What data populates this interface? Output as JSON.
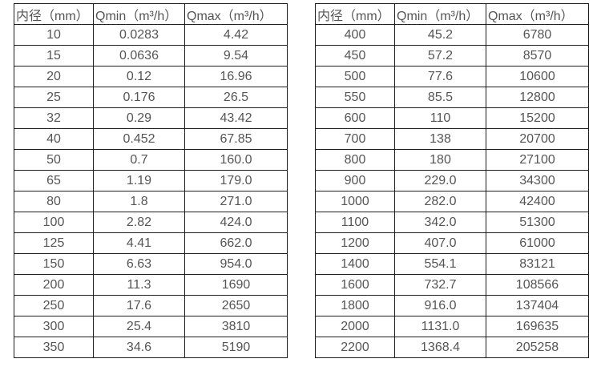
{
  "page": {
    "background": "#ffffff",
    "text_color": "#555555",
    "border_color": "#1f1f1f"
  },
  "tables": [
    {
      "name": "small-diameters",
      "column_keys": [
        "diameter",
        "qmin",
        "qmax"
      ],
      "headers": [
        "内径（mm）",
        "Qmin（m³/h）",
        "Qmax（m³/h）"
      ],
      "rows": [
        [
          "10",
          "0.0283",
          "4.42"
        ],
        [
          "15",
          "0.0636",
          "9.54"
        ],
        [
          "20",
          "0.12",
          "16.96"
        ],
        [
          "25",
          "0.176",
          "26.5"
        ],
        [
          "32",
          "0.29",
          "43.42"
        ],
        [
          "40",
          "0.452",
          "67.85"
        ],
        [
          "50",
          "0.7",
          "160.0"
        ],
        [
          "65",
          "1.19",
          "179.0"
        ],
        [
          "80",
          "1.8",
          "271.0"
        ],
        [
          "100",
          "2.82",
          "424.0"
        ],
        [
          "125",
          "4.41",
          "662.0"
        ],
        [
          "150",
          "6.63",
          "954.0"
        ],
        [
          "200",
          "11.3",
          "1690"
        ],
        [
          "250",
          "17.6",
          "2650"
        ],
        [
          "300",
          "25.4",
          "3810"
        ],
        [
          "350",
          "34.6",
          "5190"
        ]
      ]
    },
    {
      "name": "large-diameters",
      "column_keys": [
        "diameter",
        "qmin",
        "qmax"
      ],
      "headers": [
        "内径（mm）",
        "Qmin（m³/h）",
        "Qmax（m³/h）"
      ],
      "rows": [
        [
          "400",
          "45.2",
          "6780"
        ],
        [
          "450",
          "57.2",
          "8570"
        ],
        [
          "500",
          "77.6",
          "10600"
        ],
        [
          "550",
          "85.5",
          "12800"
        ],
        [
          "600",
          "110",
          "15200"
        ],
        [
          "700",
          "138",
          "20700"
        ],
        [
          "800",
          "180",
          "27100"
        ],
        [
          "900",
          "229.0",
          "34300"
        ],
        [
          "1000",
          "282.0",
          "42400"
        ],
        [
          "1100",
          "342.0",
          "51300"
        ],
        [
          "1200",
          "407.0",
          "61000"
        ],
        [
          "1400",
          "554.1",
          "83121"
        ],
        [
          "1600",
          "732.7",
          "108566"
        ],
        [
          "1800",
          "916.0",
          "137404"
        ],
        [
          "2000",
          "1131.0",
          "169635"
        ],
        [
          "2200",
          "1368.4",
          "205258"
        ]
      ]
    }
  ]
}
